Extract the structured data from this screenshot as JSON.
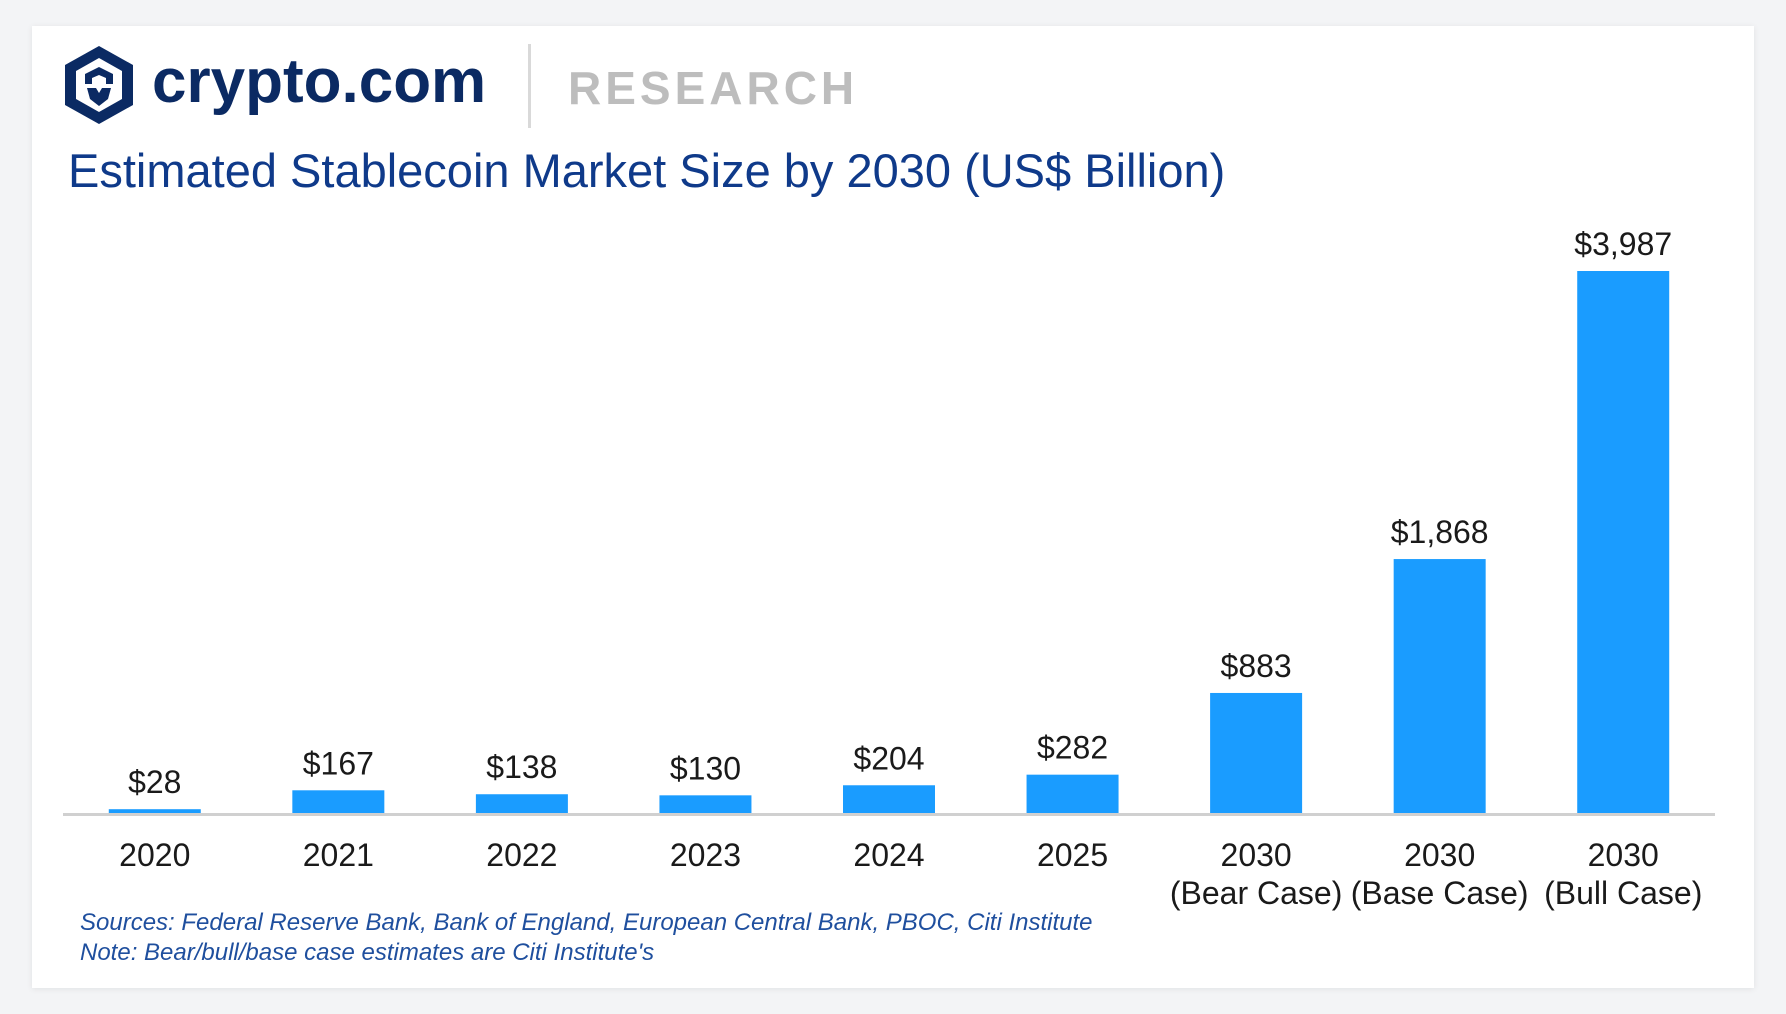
{
  "header": {
    "brand": "crypto.com",
    "section": "RESEARCH",
    "logo_icon": "crypto-com-lion-shield-icon"
  },
  "colors": {
    "bar": "#1a9cff",
    "axis": "#d0d0d0",
    "title": "#0f3a8a",
    "brand": "#0b2a63",
    "label": "#1a1a1a"
  },
  "chart_data": {
    "type": "bar",
    "title": "Estimated Stablecoin Market Size by 2030 (US$ Billion)",
    "categories": [
      [
        "2020"
      ],
      [
        "2021"
      ],
      [
        "2022"
      ],
      [
        "2023"
      ],
      [
        "2024"
      ],
      [
        "2025"
      ],
      [
        "2030",
        "(Bear Case)"
      ],
      [
        "2030",
        "(Base Case)"
      ],
      [
        "2030",
        "(Bull Case)"
      ]
    ],
    "values": [
      28,
      167,
      138,
      130,
      204,
      282,
      883,
      1868,
      3987
    ],
    "data_labels": [
      "$28",
      "$167",
      "$138",
      "$130",
      "$204",
      "$282",
      "$883",
      "$1,868",
      "$3,987"
    ],
    "xlabel": "",
    "ylabel": "",
    "ylim": [
      0,
      3987
    ],
    "grid": false,
    "legend": "none"
  },
  "notes": {
    "sources": "Sources: Federal Reserve Bank, Bank of England, European Central Bank, PBOC, Citi Institute",
    "note": "Note: Bear/bull/base case estimates are Citi Institute's"
  }
}
